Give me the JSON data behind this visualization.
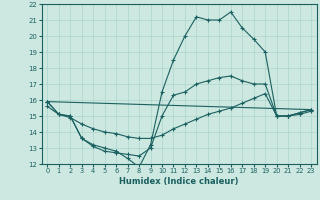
{
  "xlabel": "Humidex (Indice chaleur)",
  "xlim": [
    -0.5,
    23.5
  ],
  "ylim": [
    12,
    22
  ],
  "yticks": [
    12,
    13,
    14,
    15,
    16,
    17,
    18,
    19,
    20,
    21,
    22
  ],
  "xticks": [
    0,
    1,
    2,
    3,
    4,
    5,
    6,
    7,
    8,
    9,
    10,
    11,
    12,
    13,
    14,
    15,
    16,
    17,
    18,
    19,
    20,
    21,
    22,
    23
  ],
  "bg_color": "#cce8e0",
  "line_color": "#1a6060",
  "grid_color": "#b0d8d0",
  "lines": [
    {
      "x": [
        0,
        1,
        2,
        3,
        4,
        5,
        6,
        7,
        8,
        9,
        10,
        11,
        12,
        13,
        14,
        15,
        16,
        17,
        18,
        19,
        20,
        21,
        22,
        23
      ],
      "y": [
        15.9,
        15.1,
        15.0,
        13.6,
        13.2,
        13.0,
        12.8,
        12.35,
        11.8,
        13.2,
        16.5,
        18.5,
        20.0,
        21.2,
        21.0,
        21.0,
        21.5,
        20.5,
        19.8,
        19.0,
        15.0,
        15.0,
        15.2,
        15.4
      ]
    },
    {
      "x": [
        0,
        1,
        2,
        3,
        4,
        5,
        6,
        7,
        8,
        9,
        10,
        11,
        12,
        13,
        14,
        15,
        16,
        17,
        18,
        19,
        20,
        21,
        22,
        23
      ],
      "y": [
        15.9,
        15.1,
        15.0,
        13.6,
        13.1,
        12.8,
        12.7,
        12.6,
        12.5,
        13.0,
        15.0,
        16.3,
        16.5,
        17.0,
        17.2,
        17.4,
        17.5,
        17.2,
        17.0,
        17.0,
        15.0,
        15.0,
        15.2,
        15.4
      ]
    },
    {
      "x": [
        0,
        23
      ],
      "y": [
        15.9,
        15.4
      ]
    },
    {
      "x": [
        0,
        1,
        2,
        3,
        4,
        5,
        6,
        7,
        8,
        9,
        10,
        11,
        12,
        13,
        14,
        15,
        16,
        17,
        18,
        19,
        20,
        21,
        22,
        23
      ],
      "y": [
        15.6,
        15.1,
        14.9,
        14.5,
        14.2,
        14.0,
        13.9,
        13.7,
        13.6,
        13.6,
        13.8,
        14.2,
        14.5,
        14.8,
        15.1,
        15.3,
        15.5,
        15.8,
        16.1,
        16.4,
        15.0,
        15.0,
        15.1,
        15.3
      ]
    }
  ]
}
